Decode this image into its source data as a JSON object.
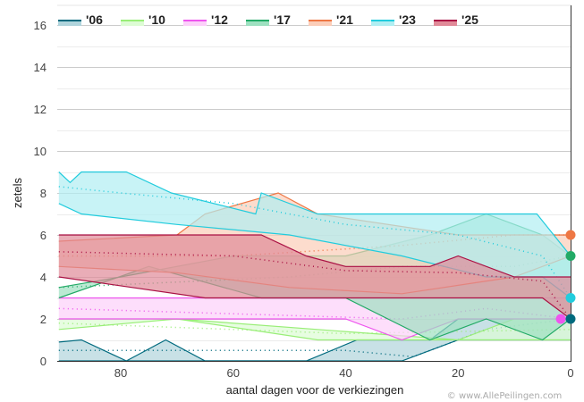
{
  "chart_data": {
    "type": "area",
    "title": "",
    "xlabel": "aantal dagen voor de verkiezingen",
    "ylabel": "zetels",
    "xlim": [
      91,
      0
    ],
    "ylim": [
      0,
      16.8
    ],
    "x_ticks": [
      80,
      60,
      40,
      20,
      0
    ],
    "y_ticks": [
      0,
      2,
      4,
      6,
      8,
      10,
      12,
      14,
      16
    ],
    "grid": true,
    "legend_position": "top-left",
    "credit": "© www.AllePeilingen.com",
    "series": [
      {
        "name": "'06",
        "color": "#006a7e",
        "fill": "#b0d4dc",
        "band_upper": [
          [
            91,
            0.9
          ],
          [
            87,
            1.0
          ],
          [
            79,
            0
          ],
          [
            72,
            1
          ],
          [
            65,
            0
          ],
          [
            47,
            0
          ],
          [
            38,
            1
          ],
          [
            30,
            1
          ],
          [
            25,
            1
          ],
          [
            20,
            2
          ],
          [
            10,
            2
          ],
          [
            0,
            2
          ]
        ],
        "band_lower": [
          [
            91,
            0
          ],
          [
            47,
            0
          ],
          [
            30,
            0
          ],
          [
            20,
            1
          ],
          [
            10,
            1
          ],
          [
            0,
            1
          ]
        ],
        "median": [
          [
            91,
            0.5
          ],
          [
            40,
            0.5
          ],
          [
            28,
            0.2
          ],
          [
            15,
            1.5
          ],
          [
            0,
            2
          ]
        ],
        "final": 2
      },
      {
        "name": "'10",
        "color": "#99ee77",
        "fill": "#ddfcd4",
        "band_upper": [
          [
            91,
            2
          ],
          [
            70,
            2
          ],
          [
            45,
            1.5
          ],
          [
            20,
            1
          ],
          [
            10,
            2
          ],
          [
            0,
            2
          ]
        ],
        "band_lower": [
          [
            91,
            1.5
          ],
          [
            70,
            2
          ],
          [
            45,
            1
          ],
          [
            20,
            1
          ],
          [
            0,
            1
          ]
        ],
        "median": [
          [
            91,
            1.8
          ],
          [
            40,
            1.3
          ],
          [
            0,
            1.5
          ]
        ],
        "final": 1
      },
      {
        "name": "'12",
        "color": "#ee55ee",
        "fill": "#fcd0fa",
        "band_upper": [
          [
            91,
            3
          ],
          [
            60,
            3
          ],
          [
            40,
            3
          ],
          [
            20,
            3
          ],
          [
            0,
            3
          ]
        ],
        "band_lower": [
          [
            91,
            2
          ],
          [
            60,
            2
          ],
          [
            40,
            2
          ],
          [
            30,
            1
          ],
          [
            20,
            2
          ],
          [
            0,
            2
          ]
        ],
        "median": [
          [
            91,
            2.5
          ],
          [
            30,
            2
          ],
          [
            15,
            2.5
          ],
          [
            0,
            2
          ]
        ],
        "final": 2
      },
      {
        "name": "'17",
        "color": "#22aa66",
        "fill": "#9ee0c0",
        "band_upper": [
          [
            91,
            3.5
          ],
          [
            80,
            4
          ],
          [
            60,
            5
          ],
          [
            40,
            5
          ],
          [
            25,
            6
          ],
          [
            15,
            7
          ],
          [
            5,
            6
          ],
          [
            0,
            5
          ]
        ],
        "band_lower": [
          [
            91,
            3
          ],
          [
            75,
            4.5
          ],
          [
            55,
            3
          ],
          [
            40,
            3
          ],
          [
            25,
            1
          ],
          [
            15,
            2
          ],
          [
            5,
            1
          ],
          [
            0,
            2
          ]
        ],
        "median": [
          [
            91,
            3.5
          ],
          [
            50,
            4
          ],
          [
            30,
            4.5
          ],
          [
            10,
            4.5
          ],
          [
            0,
            5
          ]
        ],
        "final": 5
      },
      {
        "name": "'21",
        "color": "#ee7744",
        "fill": "#fbcdb8",
        "band_upper": [
          [
            91,
            5.7
          ],
          [
            70,
            6
          ],
          [
            65,
            7
          ],
          [
            52,
            8
          ],
          [
            45,
            7
          ],
          [
            20,
            6
          ],
          [
            3,
            6
          ],
          [
            0,
            6
          ]
        ],
        "band_lower": [
          [
            91,
            4.5
          ],
          [
            70,
            4.2
          ],
          [
            50,
            3.5
          ],
          [
            30,
            3.2
          ],
          [
            10,
            4
          ],
          [
            0,
            5
          ]
        ],
        "median": [
          [
            91,
            5
          ],
          [
            60,
            5
          ],
          [
            30,
            5.5
          ],
          [
            10,
            6
          ],
          [
            0,
            6
          ]
        ],
        "final": 6
      },
      {
        "name": "'23",
        "color": "#22ccdd",
        "fill": "#b0eef2",
        "band_upper": [
          [
            91,
            9
          ],
          [
            89,
            8.5
          ],
          [
            87,
            9
          ],
          [
            79,
            9
          ],
          [
            71,
            8
          ],
          [
            56,
            7
          ],
          [
            55,
            8
          ],
          [
            45,
            7
          ],
          [
            30,
            7
          ],
          [
            6,
            7
          ],
          [
            0,
            5
          ]
        ],
        "band_lower": [
          [
            91,
            7.5
          ],
          [
            87,
            7
          ],
          [
            70,
            6.5
          ],
          [
            50,
            6
          ],
          [
            30,
            5
          ],
          [
            15,
            4
          ],
          [
            5,
            4
          ],
          [
            0,
            3
          ]
        ],
        "median": [
          [
            91,
            8.3
          ],
          [
            80,
            8
          ],
          [
            60,
            7.5
          ],
          [
            40,
            6.5
          ],
          [
            20,
            6
          ],
          [
            5,
            5
          ],
          [
            0,
            3
          ]
        ],
        "final": 3
      },
      {
        "name": "'25",
        "color": "#aa1144",
        "fill": "#e08a98",
        "band_upper": [
          [
            91,
            6
          ],
          [
            55,
            6
          ],
          [
            47,
            5
          ],
          [
            40,
            4.5
          ],
          [
            25,
            4.5
          ],
          [
            20,
            5
          ],
          [
            10,
            4
          ],
          [
            0,
            4
          ]
        ],
        "band_lower": [
          [
            91,
            4
          ],
          [
            65,
            3
          ],
          [
            30,
            3
          ],
          [
            20,
            3
          ],
          [
            5,
            3
          ],
          [
            0,
            2
          ]
        ],
        "median": [
          [
            91,
            5.2
          ],
          [
            60,
            5
          ],
          [
            40,
            4.3
          ],
          [
            20,
            4.2
          ],
          [
            5,
            3.8
          ],
          [
            0,
            2
          ]
        ],
        "final": 2
      }
    ]
  }
}
